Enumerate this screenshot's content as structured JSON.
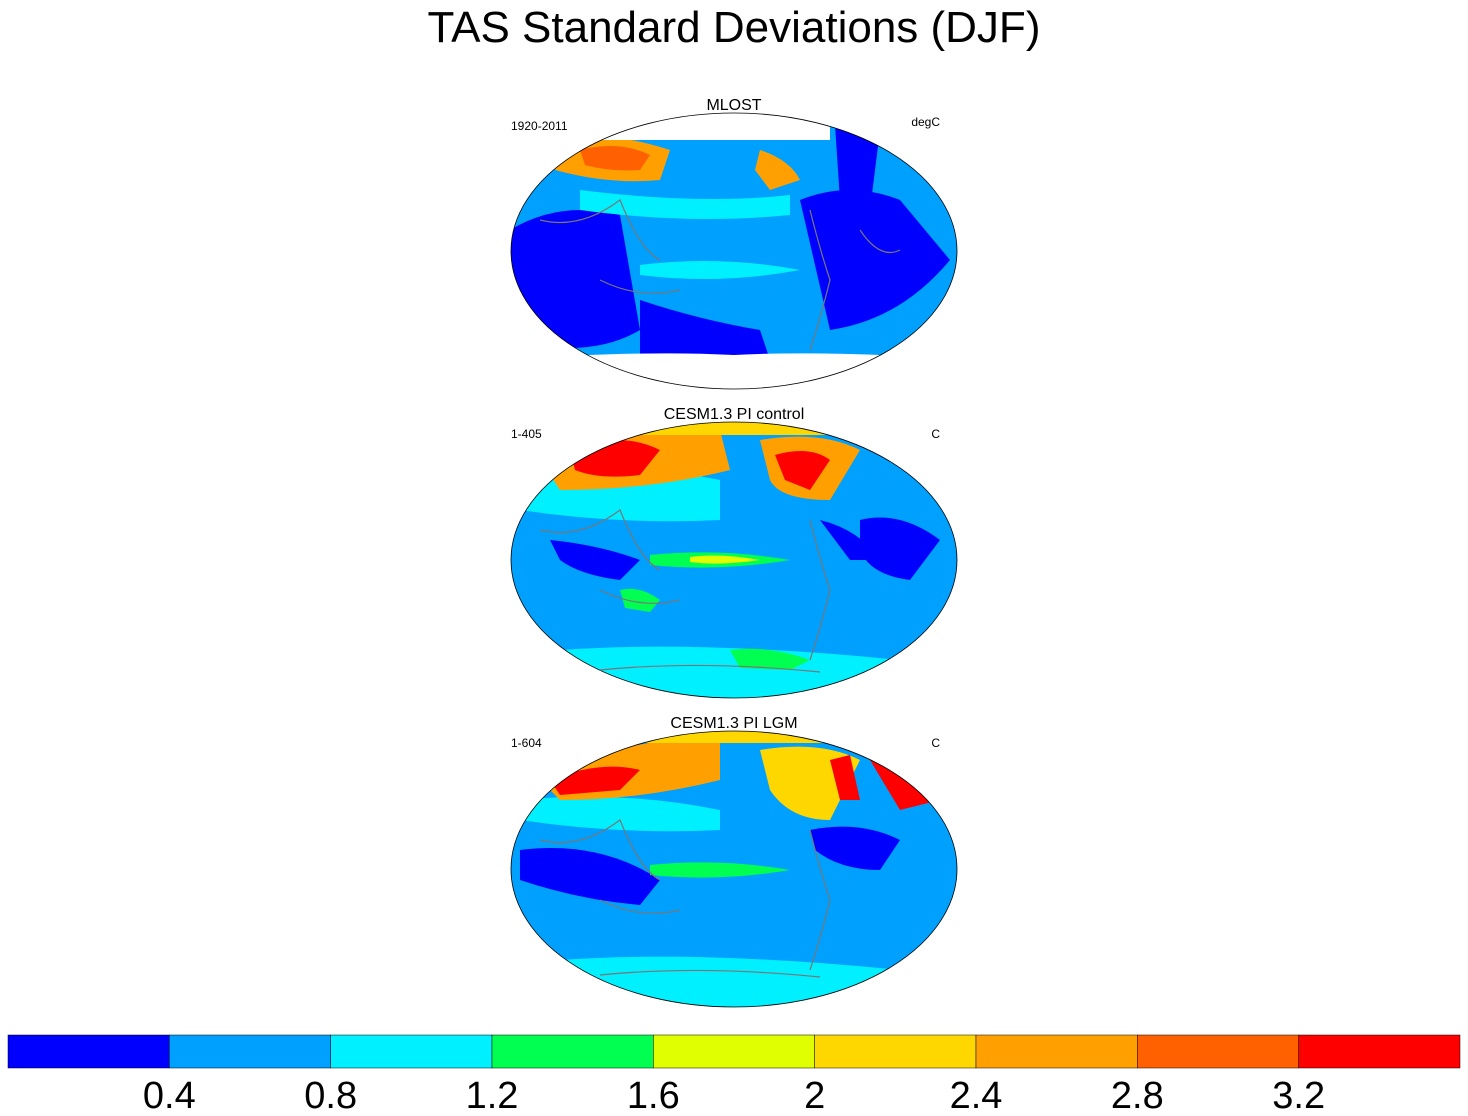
{
  "title": "TAS Standard Deviations (DJF)",
  "panels": [
    {
      "title": "MLOST",
      "left": "1920-2011",
      "right": "degC"
    },
    {
      "title": "CESM1.3 PI control",
      "left": "1-405",
      "right": "C"
    },
    {
      "title": "CESM1.3 PI LGM",
      "left": "1-604",
      "right": "C"
    }
  ],
  "colorbar": {
    "colors": [
      "#0000ff",
      "#00a0ff",
      "#00f0ff",
      "#00ff50",
      "#e0ff00",
      "#ffd700",
      "#ffa000",
      "#ff6000",
      "#ff0000"
    ],
    "ticks": [
      0.4,
      0.8,
      1.2,
      1.6,
      2,
      2.4,
      2.8,
      3.2
    ]
  }
}
